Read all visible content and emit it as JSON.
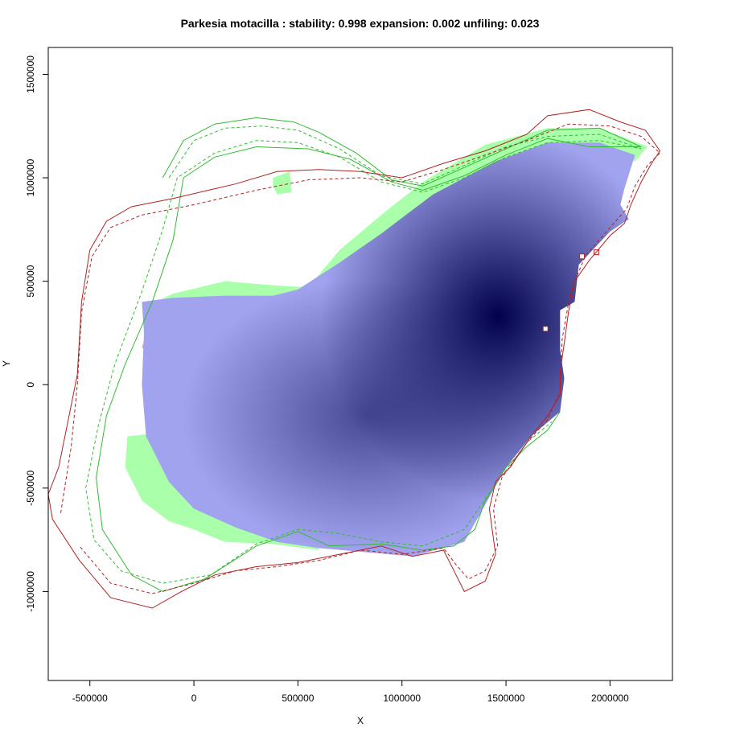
{
  "chart_data": {
    "type": "heatmap",
    "title": "Parkesia motacilla : stability: 0.998 expansion: 0.002 unfiling: 0.023",
    "xlabel": "X",
    "ylabel": "Y",
    "xlim": [
      -700000,
      2300000
    ],
    "ylim": [
      -1430000,
      1630000
    ],
    "x_ticks": [
      -500000,
      0,
      500000,
      1000000,
      1500000,
      2000000
    ],
    "x_tick_labels": [
      "-500000",
      "0",
      "500000",
      "1000000",
      "1500000",
      "2000000"
    ],
    "y_ticks": [
      -1000000,
      -500000,
      0,
      500000,
      1000000,
      1500000
    ],
    "y_tick_labels": [
      "-1000000",
      "-500000",
      "0",
      "500000",
      "1000000",
      "1500000"
    ],
    "grid": false,
    "colors": {
      "stability_low": "#a1a3ef",
      "stability_high": "#00004d",
      "unfilling": "#aaffaa",
      "expansion": "#f0a0a0",
      "native_range_outline": "#33bb33",
      "invaded_range_outline": "#b22222"
    },
    "density_peaks": [
      {
        "x": 1460000,
        "y": 330000,
        "weight": 1.0
      },
      {
        "x": 830000,
        "y": -150000,
        "weight": 0.55
      }
    ],
    "regions": {
      "stability": [
        [
          -250000,
          400000
        ],
        [
          -100000,
          420000
        ],
        [
          150000,
          430000
        ],
        [
          380000,
          430000
        ],
        [
          500000,
          460000
        ],
        [
          700000,
          590000
        ],
        [
          900000,
          730000
        ],
        [
          1150000,
          920000
        ],
        [
          1450000,
          1080000
        ],
        [
          1700000,
          1170000
        ],
        [
          1950000,
          1170000
        ],
        [
          2120000,
          1110000
        ],
        [
          2070000,
          950000
        ],
        [
          2050000,
          870000
        ],
        [
          2090000,
          800000
        ],
        [
          2000000,
          740000
        ],
        [
          1850000,
          580000
        ],
        [
          1830000,
          400000
        ],
        [
          1760000,
          360000
        ],
        [
          1760000,
          170000
        ],
        [
          1780000,
          30000
        ],
        [
          1760000,
          -130000
        ],
        [
          1620000,
          -250000
        ],
        [
          1500000,
          -400000
        ],
        [
          1400000,
          -580000
        ],
        [
          1300000,
          -760000
        ],
        [
          1050000,
          -830000
        ],
        [
          600000,
          -790000
        ],
        [
          400000,
          -760000
        ],
        [
          200000,
          -690000
        ],
        [
          0,
          -600000
        ],
        [
          -120000,
          -470000
        ],
        [
          -230000,
          -250000
        ],
        [
          -250000,
          0
        ],
        [
          -240000,
          250000
        ]
      ],
      "unfilling": [
        [
          [
            -250000,
            370000
          ],
          [
            -100000,
            440000
          ],
          [
            150000,
            500000
          ],
          [
            380000,
            480000
          ],
          [
            550000,
            470000
          ],
          [
            700000,
            650000
          ],
          [
            900000,
            820000
          ],
          [
            1100000,
            980000
          ],
          [
            1400000,
            1160000
          ],
          [
            1700000,
            1240000
          ],
          [
            1950000,
            1240000
          ],
          [
            2180000,
            1150000
          ],
          [
            2120000,
            1080000
          ],
          [
            1950000,
            1130000
          ],
          [
            1700000,
            1140000
          ],
          [
            1450000,
            1060000
          ],
          [
            1150000,
            890000
          ],
          [
            900000,
            700000
          ],
          [
            700000,
            560000
          ],
          [
            500000,
            440000
          ],
          [
            380000,
            410000
          ],
          [
            150000,
            410000
          ],
          [
            -100000,
            400000
          ],
          [
            -250000,
            380000
          ]
        ],
        [
          [
            -230000,
            -240000
          ],
          [
            -320000,
            -250000
          ],
          [
            -330000,
            -400000
          ],
          [
            -250000,
            -560000
          ],
          [
            -120000,
            -660000
          ],
          [
            0,
            -700000
          ],
          [
            150000,
            -760000
          ],
          [
            380000,
            -770000
          ],
          [
            600000,
            -800000
          ],
          [
            600000,
            -760000
          ],
          [
            400000,
            -730000
          ],
          [
            200000,
            -660000
          ],
          [
            0,
            -570000
          ],
          [
            -120000,
            -440000
          ],
          [
            -220000,
            -250000
          ]
        ],
        [
          [
            380000,
            1000000
          ],
          [
            460000,
            1030000
          ],
          [
            470000,
            930000
          ],
          [
            400000,
            920000
          ],
          [
            380000,
            960000
          ]
        ]
      ],
      "expansion": [
        [
          [
            -250000,
            180000
          ],
          [
            -210000,
            300000
          ],
          [
            -180000,
            280000
          ],
          [
            -220000,
            150000
          ]
        ],
        [
          [
            1200000,
            -770000
          ],
          [
            1260000,
            -740000
          ],
          [
            1400000,
            -560000
          ],
          [
            1450000,
            -470000
          ],
          [
            1410000,
            -430000
          ],
          [
            1330000,
            -560000
          ],
          [
            1220000,
            -710000
          ]
        ],
        [
          [
            1510000,
            -270000
          ],
          [
            1580000,
            -250000
          ],
          [
            1540000,
            -230000
          ]
        ]
      ]
    },
    "outlines": {
      "native_solid": [
        [
          -150000,
          1000000
        ],
        [
          -50000,
          1180000
        ],
        [
          100000,
          1260000
        ],
        [
          300000,
          1290000
        ],
        [
          480000,
          1270000
        ],
        [
          600000,
          1220000
        ],
        [
          780000,
          1120000
        ],
        [
          950000,
          990000
        ],
        [
          1100000,
          960000
        ],
        [
          1300000,
          1050000
        ],
        [
          1500000,
          1140000
        ],
        [
          1700000,
          1230000
        ],
        [
          1950000,
          1240000
        ],
        [
          2150000,
          1150000
        ],
        [
          1900000,
          1150000
        ],
        [
          1700000,
          1190000
        ],
        [
          1500000,
          1110000
        ],
        [
          1300000,
          1010000
        ],
        [
          1100000,
          940000
        ],
        [
          950000,
          980000
        ],
        [
          750000,
          1090000
        ],
        [
          550000,
          1140000
        ],
        [
          300000,
          1150000
        ],
        [
          100000,
          1100000
        ],
        [
          -50000,
          1000000
        ],
        [
          -100000,
          700000
        ],
        [
          -200000,
          400000
        ],
        [
          -330000,
          100000
        ],
        [
          -420000,
          -150000
        ],
        [
          -470000,
          -450000
        ],
        [
          -440000,
          -700000
        ],
        [
          -300000,
          -920000
        ],
        [
          -150000,
          -1000000
        ],
        [
          50000,
          -940000
        ],
        [
          300000,
          -780000
        ],
        [
          500000,
          -710000
        ],
        [
          650000,
          -780000
        ],
        [
          900000,
          -770000
        ],
        [
          1100000,
          -800000
        ],
        [
          1250000,
          -780000
        ],
        [
          1350000,
          -700000
        ],
        [
          1400000,
          -560000
        ],
        [
          1500000,
          -400000
        ],
        [
          1600000,
          -300000
        ],
        [
          1700000,
          -220000
        ],
        [
          1760000,
          -130000
        ]
      ],
      "native_dashed": [
        [
          -120000,
          1000000
        ],
        [
          0,
          1180000
        ],
        [
          150000,
          1240000
        ],
        [
          330000,
          1250000
        ],
        [
          500000,
          1230000
        ],
        [
          700000,
          1140000
        ],
        [
          900000,
          1010000
        ],
        [
          1100000,
          970000
        ],
        [
          1300000,
          1060000
        ],
        [
          1500000,
          1150000
        ],
        [
          1700000,
          1200000
        ],
        [
          1950000,
          1210000
        ],
        [
          2150000,
          1140000
        ],
        [
          1950000,
          1180000
        ],
        [
          1700000,
          1170000
        ],
        [
          1500000,
          1100000
        ],
        [
          1300000,
          1000000
        ],
        [
          1100000,
          930000
        ],
        [
          900000,
          980000
        ],
        [
          700000,
          1100000
        ],
        [
          500000,
          1170000
        ],
        [
          300000,
          1180000
        ],
        [
          100000,
          1120000
        ],
        [
          -80000,
          1000000
        ],
        [
          -150000,
          750000
        ],
        [
          -250000,
          450000
        ],
        [
          -380000,
          100000
        ],
        [
          -460000,
          -200000
        ],
        [
          -520000,
          -500000
        ],
        [
          -480000,
          -750000
        ],
        [
          -350000,
          -900000
        ],
        [
          -150000,
          -960000
        ],
        [
          80000,
          -920000
        ],
        [
          300000,
          -770000
        ],
        [
          500000,
          -700000
        ],
        [
          700000,
          -720000
        ],
        [
          900000,
          -760000
        ],
        [
          1100000,
          -780000
        ],
        [
          1300000,
          -700000
        ],
        [
          1450000,
          -480000
        ],
        [
          1600000,
          -280000
        ],
        [
          1720000,
          -180000
        ]
      ],
      "invaded_solid": [
        [
          -700000,
          -530000
        ],
        [
          -650000,
          -400000
        ],
        [
          -600000,
          -150000
        ],
        [
          -560000,
          50000
        ],
        [
          -540000,
          400000
        ],
        [
          -500000,
          650000
        ],
        [
          -420000,
          790000
        ],
        [
          -300000,
          860000
        ],
        [
          -100000,
          900000
        ],
        [
          200000,
          970000
        ],
        [
          400000,
          1030000
        ],
        [
          600000,
          1040000
        ],
        [
          800000,
          1030000
        ],
        [
          1000000,
          1000000
        ],
        [
          1200000,
          1070000
        ],
        [
          1400000,
          1130000
        ],
        [
          1600000,
          1210000
        ],
        [
          1700000,
          1300000
        ],
        [
          1900000,
          1330000
        ],
        [
          2050000,
          1270000
        ],
        [
          2170000,
          1230000
        ],
        [
          2240000,
          1130000
        ],
        [
          2200000,
          1070000
        ],
        [
          2150000,
          980000
        ],
        [
          2100000,
          870000
        ],
        [
          2070000,
          780000
        ],
        [
          2000000,
          720000
        ],
        [
          1900000,
          600000
        ],
        [
          1830000,
          500000
        ],
        [
          1800000,
          350000
        ],
        [
          1780000,
          200000
        ],
        [
          1760000,
          60000
        ],
        [
          1760000,
          -50000
        ],
        [
          1700000,
          -150000
        ],
        [
          1620000,
          -250000
        ],
        [
          1520000,
          -400000
        ],
        [
          1450000,
          -470000
        ],
        [
          1420000,
          -600000
        ],
        [
          1450000,
          -820000
        ],
        [
          1400000,
          -950000
        ],
        [
          1300000,
          -1000000
        ],
        [
          1250000,
          -900000
        ],
        [
          1200000,
          -800000
        ],
        [
          1050000,
          -830000
        ],
        [
          900000,
          -780000
        ],
        [
          700000,
          -820000
        ],
        [
          500000,
          -860000
        ],
        [
          300000,
          -880000
        ],
        [
          100000,
          -920000
        ],
        [
          -60000,
          -1000000
        ],
        [
          -200000,
          -1080000
        ],
        [
          -400000,
          -1030000
        ],
        [
          -550000,
          -850000
        ],
        [
          -680000,
          -650000
        ]
      ],
      "invaded_dashed": [
        [
          -640000,
          -620000
        ],
        [
          -590000,
          -300000
        ],
        [
          -560000,
          0
        ],
        [
          -540000,
          350000
        ],
        [
          -490000,
          620000
        ],
        [
          -400000,
          760000
        ],
        [
          -250000,
          820000
        ],
        [
          0,
          870000
        ],
        [
          300000,
          940000
        ],
        [
          550000,
          990000
        ],
        [
          800000,
          1000000
        ],
        [
          1000000,
          980000
        ],
        [
          1200000,
          1040000
        ],
        [
          1400000,
          1110000
        ],
        [
          1600000,
          1180000
        ],
        [
          1800000,
          1260000
        ],
        [
          2000000,
          1250000
        ],
        [
          2150000,
          1200000
        ],
        [
          2240000,
          1120000
        ],
        [
          2180000,
          1060000
        ],
        [
          2120000,
          960000
        ],
        [
          2080000,
          850000
        ],
        [
          2000000,
          760000
        ],
        [
          1880000,
          620000
        ],
        [
          1810000,
          450000
        ],
        [
          1770000,
          220000
        ],
        [
          1760000,
          -30000
        ],
        [
          1700000,
          -170000
        ],
        [
          1600000,
          -280000
        ],
        [
          1480000,
          -450000
        ],
        [
          1440000,
          -600000
        ],
        [
          1460000,
          -780000
        ],
        [
          1400000,
          -900000
        ],
        [
          1320000,
          -940000
        ],
        [
          1260000,
          -870000
        ],
        [
          1200000,
          -790000
        ],
        [
          1000000,
          -820000
        ],
        [
          800000,
          -800000
        ],
        [
          600000,
          -850000
        ],
        [
          400000,
          -880000
        ],
        [
          200000,
          -900000
        ],
        [
          0,
          -960000
        ],
        [
          -200000,
          -1010000
        ],
        [
          -400000,
          -960000
        ],
        [
          -550000,
          -780000
        ]
      ]
    },
    "small_holes": [
      {
        "x": 1690000,
        "y": 270000
      },
      {
        "x": 1865000,
        "y": 620000
      },
      {
        "x": 1935000,
        "y": 640000
      }
    ]
  }
}
